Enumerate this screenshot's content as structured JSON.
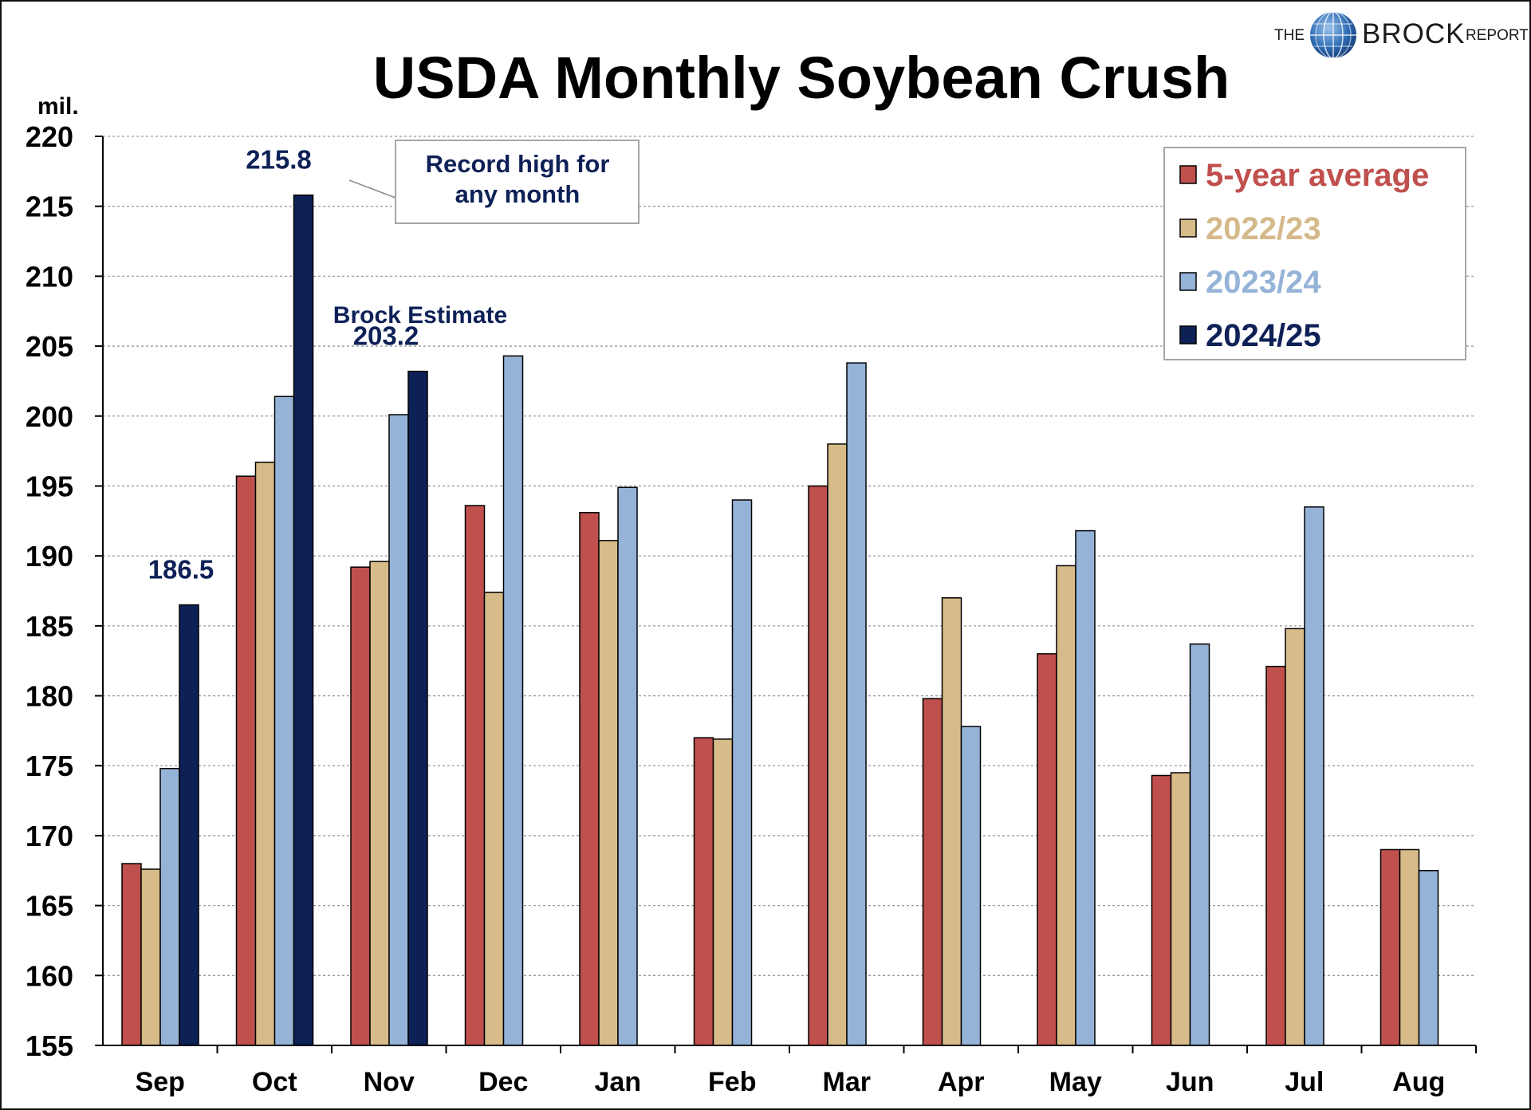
{
  "logo": {
    "the": "THE",
    "brock": "BROCK",
    "report": "REPORT"
  },
  "chart_data": {
    "type": "bar",
    "title": "USDA Monthly Soybean Crush",
    "ylabel": "mil.",
    "ylim": [
      155,
      220
    ],
    "yticks": [
      155,
      160,
      165,
      170,
      175,
      180,
      185,
      190,
      195,
      200,
      205,
      210,
      215,
      220
    ],
    "grid": true,
    "legend_position": "top-right",
    "categories": [
      "Sep",
      "Oct",
      "Nov",
      "Dec",
      "Jan",
      "Feb",
      "Mar",
      "Apr",
      "May",
      "Jun",
      "Jul",
      "Aug"
    ],
    "series": [
      {
        "name": "5-year average",
        "color": "#c0504d",
        "legend_text_color": "#c0504d",
        "values": [
          168.0,
          195.7,
          189.2,
          193.6,
          193.1,
          177.0,
          195.0,
          179.8,
          183.0,
          174.3,
          182.1,
          169.0
        ]
      },
      {
        "name": "2022/23",
        "color": "#d7bc8a",
        "legend_text_color": "#d4b98a",
        "values": [
          167.6,
          196.7,
          189.6,
          187.4,
          191.1,
          176.9,
          198.0,
          187.0,
          189.3,
          174.5,
          184.8,
          169.0
        ]
      },
      {
        "name": "2023/24",
        "color": "#95b3d7",
        "legend_text_color": "#95b3d7",
        "values": [
          174.8,
          201.4,
          200.1,
          204.3,
          194.9,
          194.0,
          203.8,
          177.8,
          191.8,
          183.7,
          193.5,
          167.5
        ]
      },
      {
        "name": "2024/25",
        "color": "#0e2157",
        "legend_text_color": "#0e2157",
        "values": [
          186.5,
          215.8,
          203.2,
          null,
          null,
          null,
          null,
          null,
          null,
          null,
          null,
          null
        ]
      }
    ],
    "data_labels": [
      {
        "category": "Sep",
        "series": "2024/25",
        "text": "186.5"
      },
      {
        "category": "Oct",
        "series": "2024/25",
        "text": "215.8"
      },
      {
        "category": "Nov",
        "series": "2024/25",
        "text": "203.2"
      }
    ],
    "annotations": {
      "record": {
        "line1": "Record high for",
        "line2": "any month"
      },
      "estimate": "Brock Estimate"
    }
  }
}
